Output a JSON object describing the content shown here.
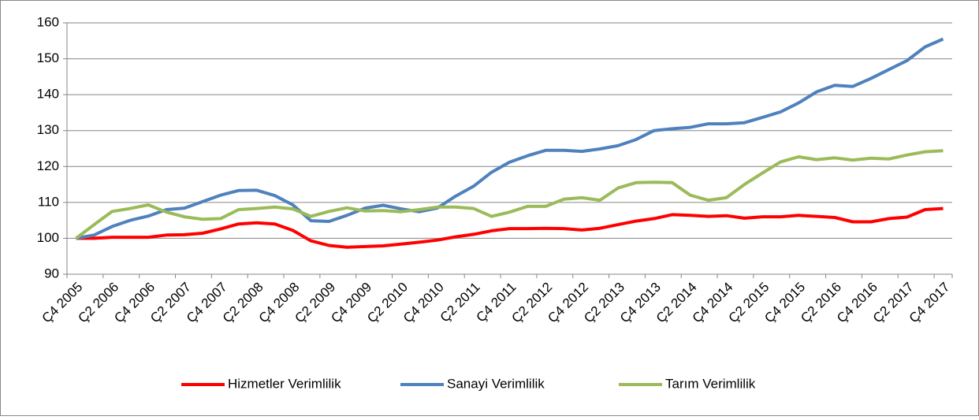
{
  "chart_data": {
    "type": "line",
    "categories": [
      "Ç4 2005",
      null,
      "Ç2 2006",
      null,
      "Ç4 2006",
      null,
      "Ç2 2007",
      null,
      "Ç4 2007",
      null,
      "Ç2 2008",
      null,
      "Ç4 2008",
      null,
      "Ç2 2009",
      null,
      "Ç4 2009",
      null,
      "Ç2 2010",
      null,
      "Ç4 2010",
      null,
      "Ç2 2011",
      null,
      "Ç4 2011",
      null,
      "Ç2 2012",
      null,
      "Ç4 2012",
      null,
      "Ç2 2013",
      null,
      "Ç4 2013",
      null,
      "Ç2 2014",
      null,
      "Ç4 2014",
      null,
      "Ç2 2015",
      null,
      "Ç4 2015",
      null,
      "Ç2 2016",
      null,
      "Ç4 2016",
      null,
      "Ç2 2017",
      null,
      "Ç4 2017"
    ],
    "series": [
      {
        "name": "Hizmetler Verimlilik",
        "color": "#ff0000",
        "values": [
          100,
          100,
          100.3,
          100.3,
          100.3,
          100.9,
          101,
          101.4,
          102.6,
          104,
          104.3,
          104,
          102.2,
          99.3,
          98,
          97.5,
          97.7,
          97.9,
          98.4,
          98.9,
          99.5,
          100.4,
          101.1,
          102.1,
          102.7,
          102.7,
          102.8,
          102.7,
          102.3,
          102.8,
          103.8,
          104.8,
          105.5,
          106.6,
          106.4,
          106.1,
          106.3,
          105.6,
          106,
          106,
          106.4,
          106.1,
          105.8,
          104.6,
          104.6,
          105.5,
          105.9,
          108,
          108.3
        ]
      },
      {
        "name": "Sanayi Verimlilik",
        "color": "#4f81bd",
        "values": [
          100,
          100.9,
          103.3,
          105,
          106.2,
          108,
          108.4,
          110.2,
          112,
          113.3,
          113.4,
          111.9,
          109.3,
          104.9,
          104.7,
          106.4,
          108.4,
          109.2,
          108.2,
          107.4,
          108.4,
          111.7,
          114.5,
          118.4,
          121.2,
          123,
          124.5,
          124.5,
          124.2,
          124.9,
          125.8,
          127.5,
          130,
          130.5,
          130.9,
          131.9,
          131.9,
          132.2,
          133.7,
          135.2,
          137.7,
          140.8,
          142.6,
          142.3,
          144.5,
          147,
          149.5,
          153.3,
          155.5
        ]
      },
      {
        "name": "Tarım Verimlilik",
        "color": "#9bbb59",
        "values": [
          100,
          103.8,
          107.5,
          108.3,
          109.3,
          107.3,
          106,
          105.3,
          105.5,
          108,
          108.3,
          108.7,
          108.2,
          106.1,
          107.5,
          108.5,
          107.6,
          107.7,
          107.4,
          108,
          108.7,
          108.7,
          108.3,
          106.1,
          107.3,
          108.9,
          108.9,
          110.9,
          111.3,
          110.6,
          114,
          115.5,
          115.6,
          115.5,
          112,
          110.6,
          111.3,
          115,
          118.2,
          121.3,
          122.7,
          121.9,
          122.4,
          121.8,
          122.3,
          122.1,
          123.2,
          124.1,
          124.4
        ]
      }
    ],
    "ylim": [
      90,
      160
    ],
    "yticks": [
      90,
      100,
      110,
      120,
      130,
      140,
      150,
      160
    ],
    "grid": true,
    "legend": "bottom"
  }
}
